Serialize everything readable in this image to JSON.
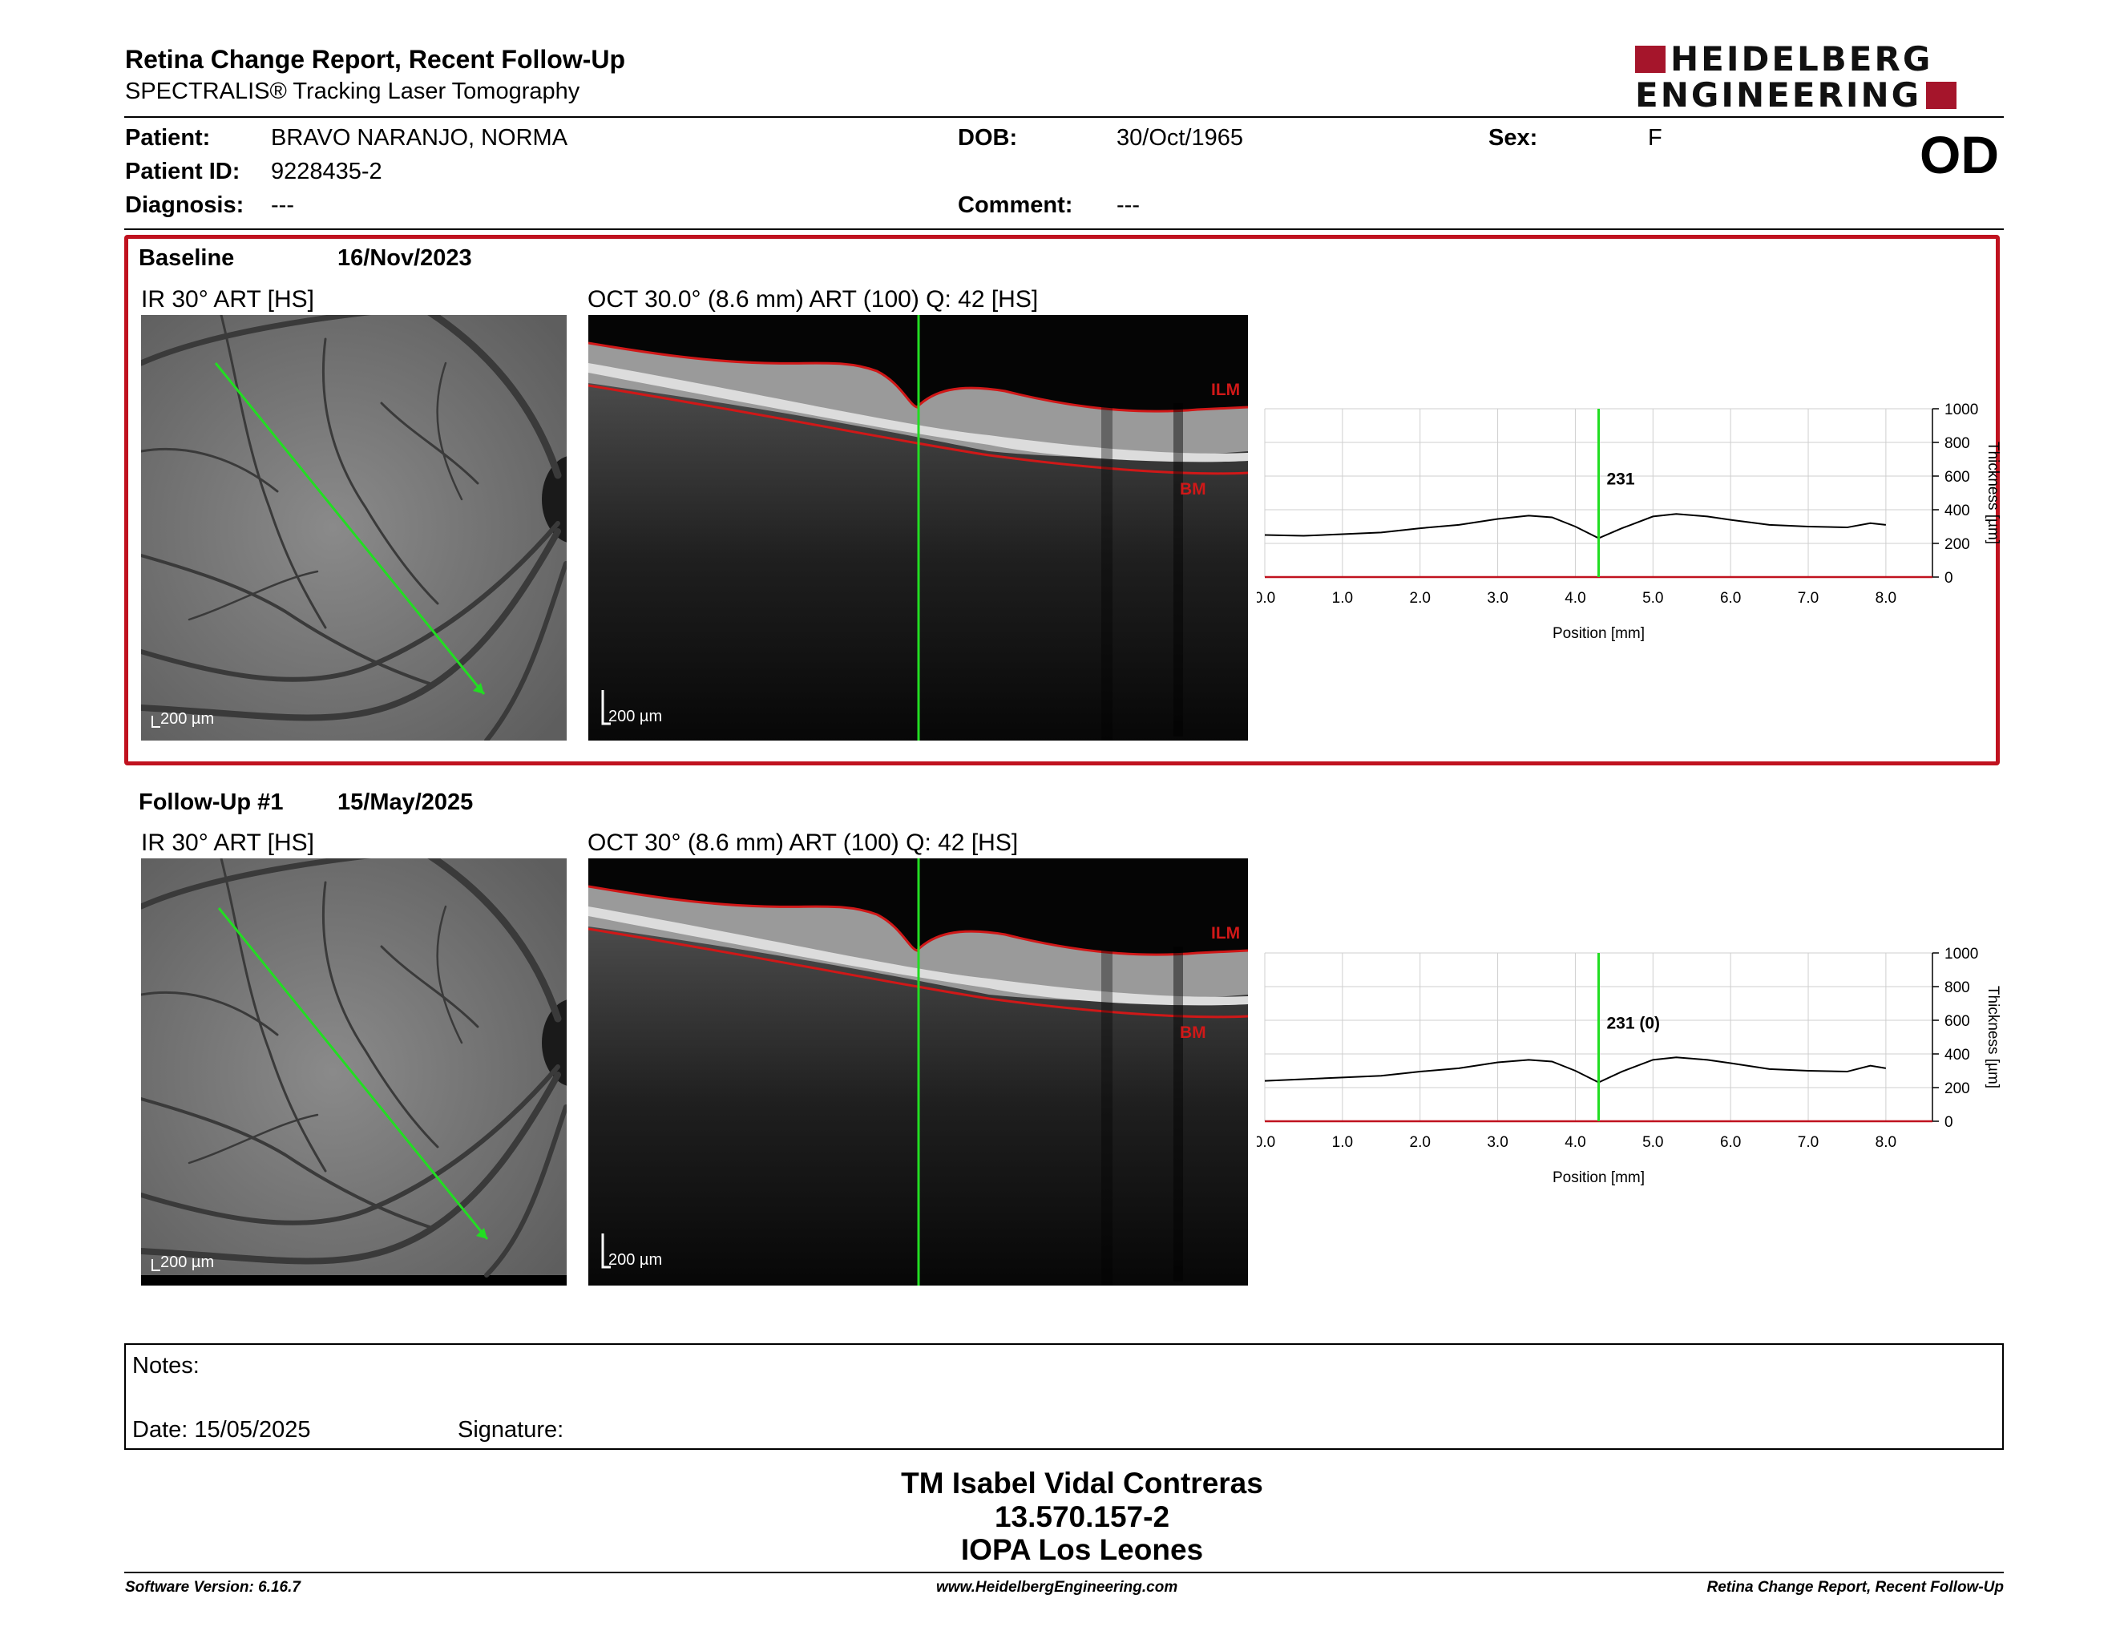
{
  "header": {
    "title": "Retina Change Report, Recent Follow-Up",
    "subtitle": "SPECTRALIS® Tracking Laser Tomography",
    "logo_line1": "HEIDELBERG",
    "logo_line2": "ENGINEERING",
    "eye": "OD"
  },
  "patient": {
    "patient_label": "Patient:",
    "patient_value": "BRAVO NARANJO, NORMA",
    "id_label": "Patient ID:",
    "id_value": "9228435-2",
    "diagnosis_label": "Diagnosis:",
    "diagnosis_value": "---",
    "dob_label": "DOB:",
    "dob_value": "30/Oct/1965",
    "comment_label": "Comment:",
    "comment_value": "---",
    "sex_label": "Sex:",
    "sex_value": "F"
  },
  "baseline": {
    "label": "Baseline",
    "date": "16/Nov/2023",
    "ir_caption": "IR 30° ART [HS]",
    "oct_caption": "OCT 30.0° (8.6 mm) ART (100) Q: 42 [HS]",
    "ir_scale": "200 µm",
    "oct_scale": "200 µm",
    "ilm": "ILM",
    "bm": "BM",
    "marker_label": "231"
  },
  "followup": {
    "label": "Follow-Up #1",
    "date": "15/May/2025",
    "ir_caption": "IR 30° ART [HS]",
    "oct_caption": "OCT 30° (8.6 mm) ART (100) Q: 42 [HS]",
    "ir_scale": "200 µm",
    "oct_scale": "200 µm",
    "ilm": "ILM",
    "bm": "BM",
    "marker_label": "231 (0)"
  },
  "chart_data": [
    {
      "type": "line",
      "xlabel": "Position [mm]",
      "ylabel": "Thickness [µm]",
      "xlim": [
        0,
        8.6
      ],
      "ylim": [
        0,
        1000
      ],
      "xticks": [
        "0.0",
        "1.0",
        "2.0",
        "3.0",
        "4.0",
        "5.0",
        "6.0",
        "7.0",
        "8.0"
      ],
      "yticks": [
        "0",
        "200",
        "400",
        "600",
        "800",
        "1000"
      ],
      "grid": true,
      "marker_x": 4.3,
      "marker_label": "231",
      "x": [
        0.0,
        0.5,
        1.0,
        1.5,
        2.0,
        2.5,
        3.0,
        3.4,
        3.7,
        4.0,
        4.3,
        4.6,
        5.0,
        5.3,
        5.7,
        6.0,
        6.5,
        7.0,
        7.5,
        7.8,
        8.0
      ],
      "y": [
        250,
        245,
        255,
        265,
        290,
        310,
        345,
        365,
        355,
        300,
        231,
        290,
        360,
        375,
        360,
        340,
        310,
        300,
        295,
        320,
        310
      ]
    },
    {
      "type": "line",
      "xlabel": "Position [mm]",
      "ylabel": "Thickness [µm]",
      "xlim": [
        0,
        8.6
      ],
      "ylim": [
        0,
        1000
      ],
      "xticks": [
        "0.0",
        "1.0",
        "2.0",
        "3.0",
        "4.0",
        "5.0",
        "6.0",
        "7.0",
        "8.0"
      ],
      "yticks": [
        "0",
        "200",
        "400",
        "600",
        "800",
        "1000"
      ],
      "grid": true,
      "marker_x": 4.3,
      "marker_label": "231 (0)",
      "x": [
        0.0,
        0.5,
        1.0,
        1.5,
        2.0,
        2.5,
        3.0,
        3.4,
        3.7,
        4.0,
        4.3,
        4.6,
        5.0,
        5.3,
        5.7,
        6.0,
        6.5,
        7.0,
        7.5,
        7.8,
        8.0
      ],
      "y": [
        240,
        250,
        260,
        270,
        295,
        315,
        350,
        365,
        355,
        300,
        231,
        295,
        365,
        380,
        365,
        345,
        310,
        300,
        295,
        330,
        315
      ]
    }
  ],
  "notes": {
    "notes_label": "Notes:",
    "date_label": "Date: 15/05/2025",
    "signature_label": "Signature:"
  },
  "signer": {
    "name": "TM Isabel Vidal Contreras",
    "id": "13.570.157-2",
    "org": "IOPA Los Leones"
  },
  "footer": {
    "software": "Software Version: 6.16.7",
    "url": "www.HeidelbergEngineering.com",
    "report": "Retina Change Report, Recent Follow-Up"
  },
  "colors": {
    "accent_red": "#c0121f",
    "scan_green": "#22dd22",
    "layer_red": "#d01818"
  }
}
